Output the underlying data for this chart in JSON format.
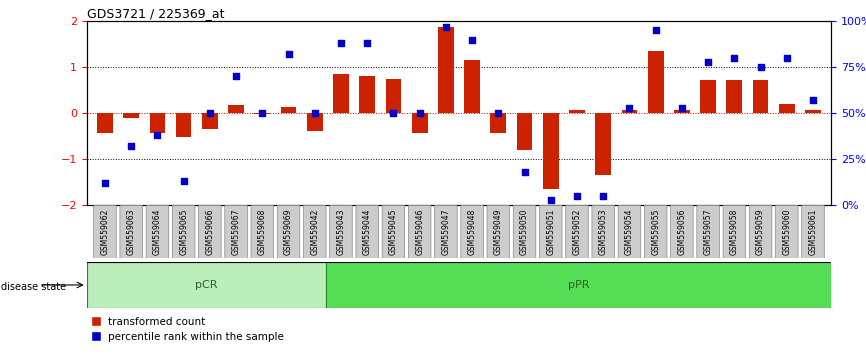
{
  "title": "GDS3721 / 225369_at",
  "categories": [
    "GSM559062",
    "GSM559063",
    "GSM559064",
    "GSM559065",
    "GSM559066",
    "GSM559067",
    "GSM559068",
    "GSM559069",
    "GSM559042",
    "GSM559043",
    "GSM559044",
    "GSM559045",
    "GSM559046",
    "GSM559047",
    "GSM559048",
    "GSM559049",
    "GSM559050",
    "GSM559051",
    "GSM559052",
    "GSM559053",
    "GSM559054",
    "GSM559055",
    "GSM559056",
    "GSM559057",
    "GSM559058",
    "GSM559059",
    "GSM559060",
    "GSM559061"
  ],
  "bar_values": [
    -0.42,
    -0.1,
    -0.42,
    -0.52,
    -0.35,
    0.18,
    -0.02,
    0.13,
    -0.38,
    0.85,
    0.82,
    0.75,
    -0.42,
    1.88,
    1.15,
    -0.42,
    -0.8,
    -1.65,
    0.07,
    -1.35,
    0.07,
    1.35,
    0.07,
    0.72,
    0.72,
    0.72,
    0.2,
    0.07
  ],
  "dot_values_pct": [
    12,
    32,
    38,
    13,
    50,
    70,
    50,
    82,
    50,
    88,
    88,
    50,
    50,
    97,
    90,
    50,
    18,
    3,
    5,
    5,
    53,
    95,
    53,
    78,
    80,
    75,
    80,
    57
  ],
  "pCR_count": 9,
  "pPR_count": 19,
  "bar_color": "#cc2200",
  "dot_color": "#0000cc",
  "background_color": "#ffffff",
  "ylim": [
    -2.0,
    2.0
  ],
  "yticks_left": [
    -2,
    -1,
    0,
    1,
    2
  ],
  "yticks_right": [
    0,
    25,
    50,
    75,
    100
  ],
  "pCR_color": "#bbeebb",
  "pPR_color": "#55dd55",
  "label_color_state": "#226622",
  "dotted_line_color": "#000000",
  "zero_line_color": "#cc0000",
  "tick_box_facecolor": "#cccccc",
  "tick_box_edgecolor": "#888888"
}
